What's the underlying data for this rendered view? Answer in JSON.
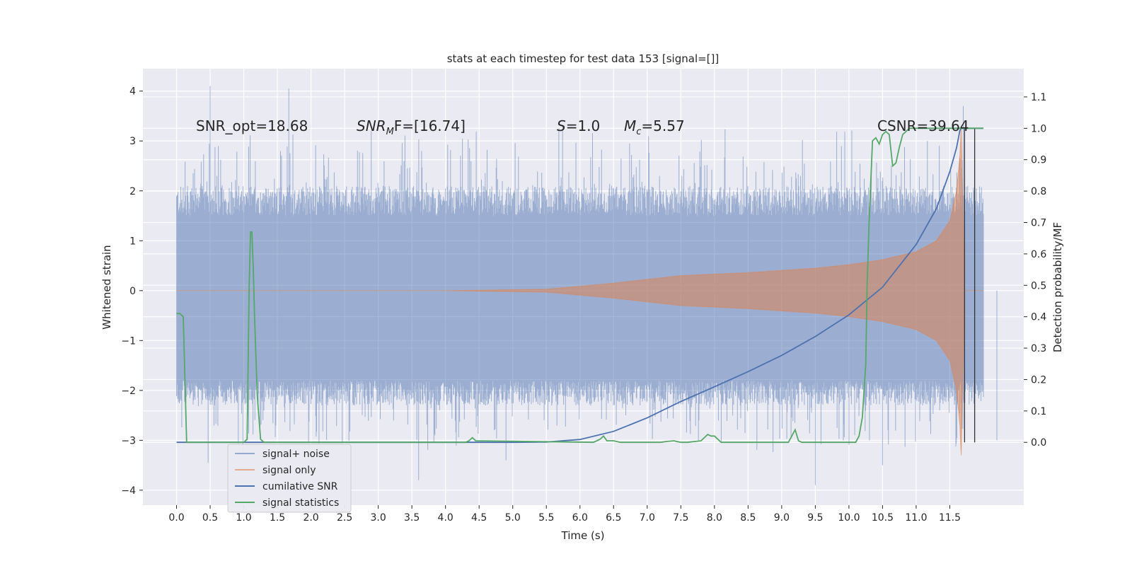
{
  "chart_data": {
    "type": "line",
    "title": "stats at each timestep for test data 153 [signal=[]]",
    "xlabel": "Time (s)",
    "ylabel": "Whitened strain",
    "ylabel_right": "Detection probability/MF",
    "xlim": [
      -0.5,
      12.6
    ],
    "ylim": [
      -4.3,
      4.45
    ],
    "ylim_right": [
      -0.2,
      1.19
    ],
    "x_ticks": [
      "0.0",
      "0.5",
      "1.0",
      "1.5",
      "2.0",
      "2.5",
      "3.0",
      "3.5",
      "4.0",
      "4.5",
      "5.0",
      "5.5",
      "6.0",
      "6.5",
      "7.0",
      "7.5",
      "8.0",
      "8.5",
      "9.0",
      "9.5",
      "10.0",
      "10.5",
      "11.0",
      "11.5"
    ],
    "y_ticks": [
      "4",
      "3",
      "2",
      "1",
      "0",
      "−1",
      "−2",
      "−3",
      "−4"
    ],
    "y_ticks_right": [
      "1.1",
      "1.0",
      "0.9",
      "0.8",
      "0.7",
      "0.6",
      "0.5",
      "0.4",
      "0.3",
      "0.2",
      "0.1",
      "0.0"
    ],
    "grid": true,
    "legend_position": "lower-left",
    "annotations": {
      "snr_opt": "SNR_opt=18.68",
      "snr_mf_sym": "SNR",
      "snr_mf_sub": "M",
      "snr_mf_rest": "F=[16.74]",
      "s_sym": "S",
      "s_rest": "=1.0",
      "mc_sym": "M",
      "mc_sub": "c",
      "mc_rest": "=5.57",
      "csnr": "CSNR=39.64"
    },
    "series": [
      {
        "name": "signal+ noise",
        "color": "#4c72b0",
        "noise_band": [
          -1.8,
          1.5
        ],
        "peaks": [
          [
            0.5,
            4.1
          ],
          [
            1.67,
            4.05
          ],
          [
            11.7,
            3.7
          ],
          [
            0.47,
            -3.45
          ],
          [
            12.2,
            -3.0
          ],
          [
            3.6,
            -3.8
          ],
          [
            9.5,
            -3.9
          ],
          [
            4.9,
            -3.4
          ],
          [
            10.5,
            -3.5
          ]
        ]
      },
      {
        "name": "signal only",
        "color": "#dd8452",
        "envelope": [
          [
            0,
            0.0
          ],
          [
            4.0,
            0.0
          ],
          [
            5.5,
            0.03
          ],
          [
            6.5,
            0.15
          ],
          [
            7.5,
            0.3
          ],
          [
            8.5,
            0.36
          ],
          [
            9.5,
            0.45
          ],
          [
            10.0,
            0.52
          ],
          [
            10.5,
            0.62
          ],
          [
            11.0,
            0.78
          ],
          [
            11.3,
            1.0
          ],
          [
            11.5,
            1.4
          ],
          [
            11.6,
            2.0
          ],
          [
            11.65,
            2.7
          ],
          [
            11.67,
            3.3
          ],
          [
            11.7,
            1.3
          ],
          [
            11.72,
            0.0
          ],
          [
            12.0,
            0.0
          ]
        ]
      },
      {
        "name": "cumilative SNR",
        "color": "#4c72b0",
        "axis": "right",
        "x": [
          0.0,
          5.0,
          5.5,
          6.0,
          6.5,
          7.0,
          7.5,
          8.0,
          8.5,
          9.0,
          9.5,
          10.0,
          10.5,
          11.0,
          11.3,
          11.5,
          11.6,
          11.65,
          11.67,
          12.0
        ],
        "y": [
          0.0,
          0.0,
          0.001,
          0.009,
          0.035,
          0.078,
          0.13,
          0.177,
          0.225,
          0.277,
          0.337,
          0.406,
          0.494,
          0.63,
          0.744,
          0.862,
          0.938,
          0.993,
          1.0,
          1.0
        ]
      },
      {
        "name": "signal statistics",
        "color": "#55a868",
        "axis": "right",
        "x": [
          0.0,
          0.05,
          0.1,
          0.15,
          0.9,
          0.95,
          1.0,
          1.05,
          1.08,
          1.1,
          1.12,
          1.14,
          1.16,
          1.2,
          1.25,
          1.3,
          4.3,
          4.35,
          4.4,
          4.45,
          6.2,
          6.25,
          6.3,
          6.35,
          6.4,
          6.5,
          6.6,
          6.7,
          7.2,
          7.3,
          7.4,
          7.45,
          7.5,
          7.6,
          7.8,
          7.9,
          7.95,
          8.0,
          8.05,
          8.1,
          8.2,
          9.1,
          9.15,
          9.2,
          9.25,
          9.3,
          10.1,
          10.15,
          10.2,
          10.25,
          10.27,
          10.3,
          10.35,
          10.4,
          10.45,
          10.5,
          10.55,
          10.6,
          10.65,
          10.7,
          10.75,
          10.8,
          10.9,
          11.0,
          11.5,
          12.0
        ],
        "y": [
          0.41,
          0.41,
          0.4,
          0.0,
          0.0,
          0.0,
          0.0,
          0.01,
          0.5,
          0.67,
          0.67,
          0.56,
          0.4,
          0.15,
          0.01,
          0.0,
          0.0,
          0.005,
          0.015,
          0.005,
          0.0,
          0.005,
          0.01,
          0.02,
          0.005,
          0.005,
          0.0,
          0.0,
          0.0,
          0.003,
          0.005,
          0.002,
          0.0,
          0.0,
          0.005,
          0.025,
          0.02,
          0.02,
          0.01,
          0.0,
          0.0,
          0.0,
          0.02,
          0.04,
          0.005,
          0.0,
          0.0,
          0.02,
          0.08,
          0.25,
          0.5,
          0.7,
          0.96,
          0.97,
          0.95,
          0.98,
          0.99,
          0.98,
          0.88,
          0.89,
          0.94,
          0.98,
          1.0,
          1.0,
          1.0,
          1.0
        ]
      }
    ],
    "vertical_lines": [
      11.72,
      11.87
    ]
  }
}
